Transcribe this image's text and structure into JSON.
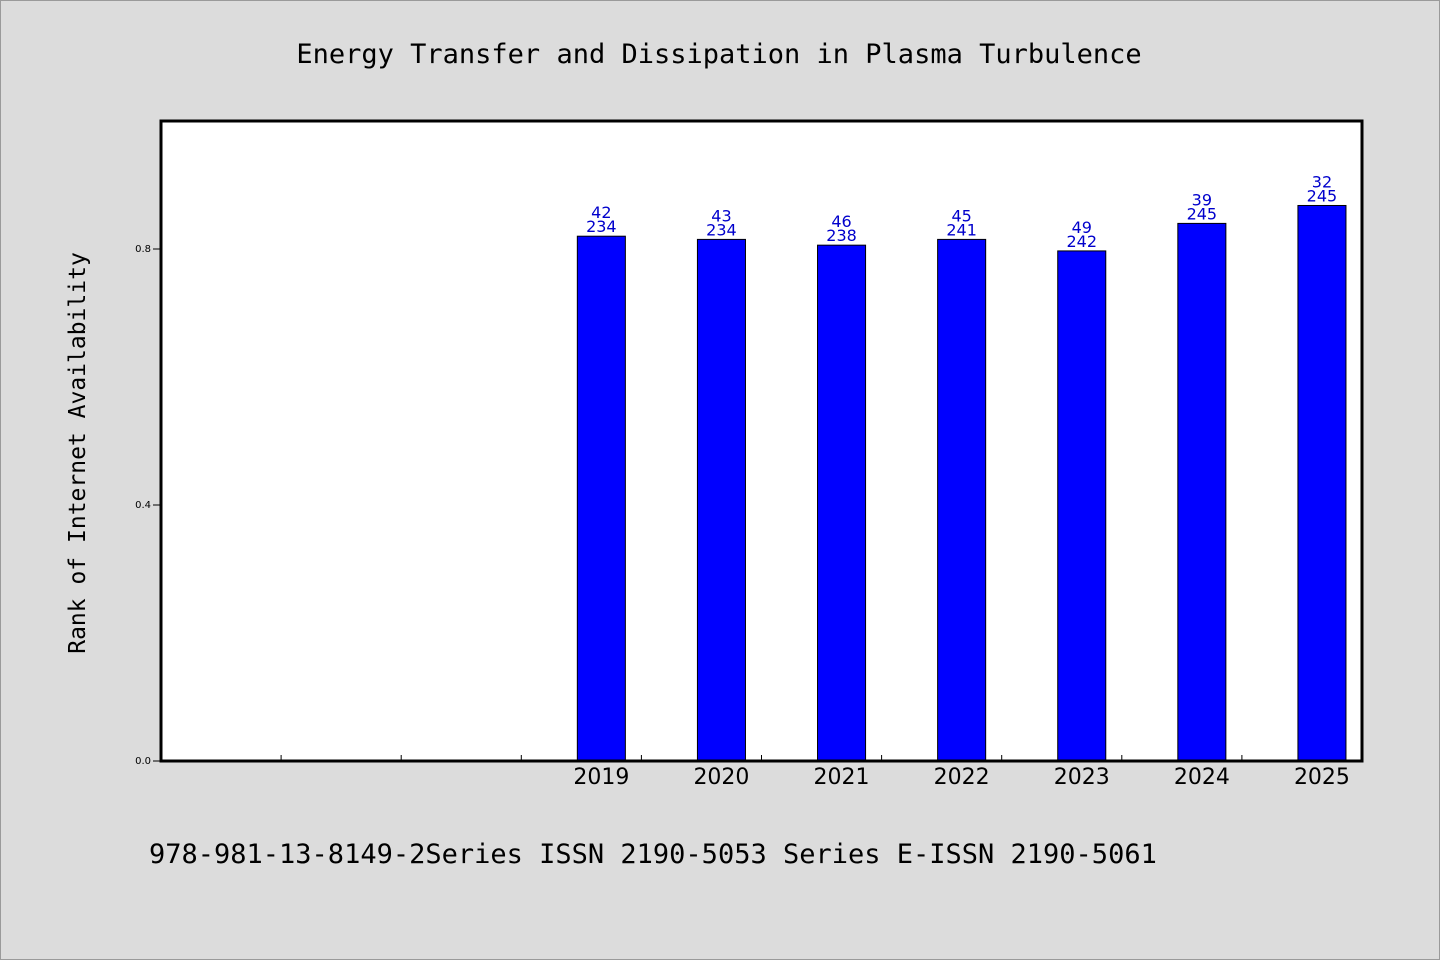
{
  "chart_data": {
    "type": "bar",
    "title": "Energy Transfer and Dissipation in Plasma Turbulence",
    "ylabel": "Rank of Internet Availability",
    "xlabel": "",
    "categories": [
      "",
      "",
      "",
      "2019",
      "2020",
      "2021",
      "2022",
      "2023",
      "2024",
      "2025"
    ],
    "values": [
      null,
      null,
      null,
      0.82,
      0.815,
      0.806,
      0.815,
      0.797,
      0.84,
      0.868
    ],
    "labels_top": [
      "",
      "",
      "",
      "42",
      "43",
      "46",
      "45",
      "49",
      "39",
      "32"
    ],
    "labels_bottom": [
      "",
      "",
      "",
      "234",
      "234",
      "238",
      "241",
      "242",
      "245",
      "245"
    ],
    "ylim": [
      0,
      1.0
    ],
    "yticks": [
      0.0,
      0.4,
      0.8
    ],
    "ytick_labels": [
      "0.0",
      "0.4",
      "0.8"
    ],
    "grid": false,
    "colors": {
      "bar": "#0000ff",
      "label": "#0000cc",
      "background": "#dcdcdc",
      "plot_background": "#ffffff"
    }
  },
  "footer": {
    "text": "978-981-13-8149-2Series ISSN 2190-5053 Series E-ISSN 2190-5061"
  }
}
